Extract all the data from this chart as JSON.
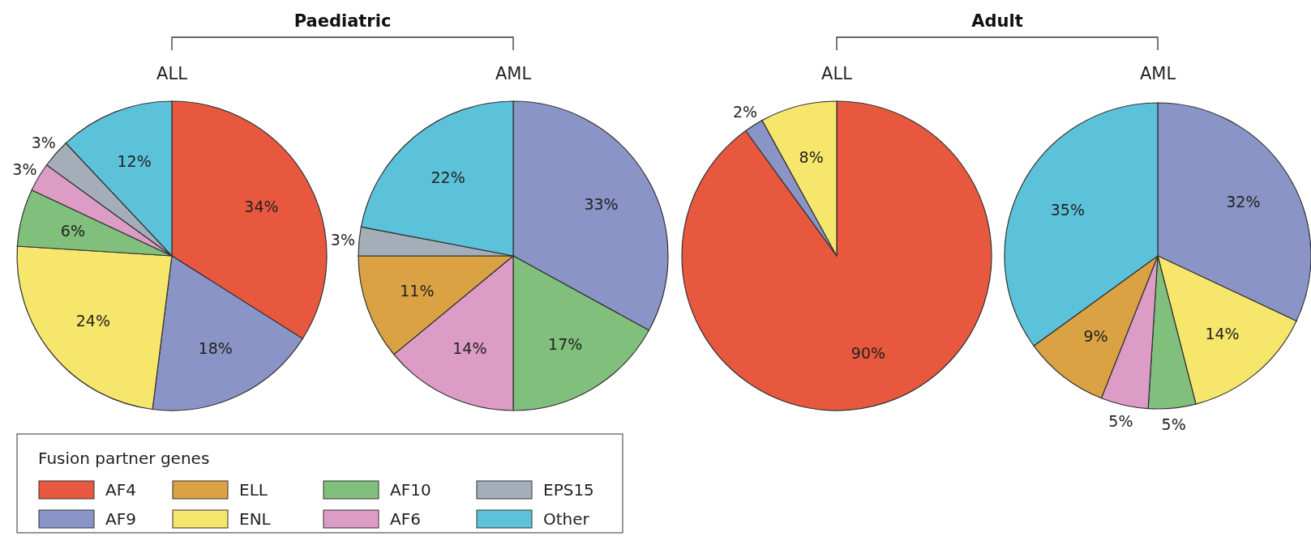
{
  "chart_data": [
    {
      "type": "pie",
      "title": "ALL",
      "annotations": [
        "Paediatric"
      ],
      "categories": [
        null,
        null,
        null,
        null,
        null,
        null,
        null
      ],
      "values": [
        34,
        18,
        24,
        6,
        3,
        3,
        12
      ],
      "value_labels": [
        "34%",
        "18%",
        "24%",
        "6%",
        "3%",
        "3%",
        "12%"
      ],
      "colors": [
        "#e8583f",
        "#8b94c6",
        "#f6e66c",
        "#80c07c",
        "#dc9cc6",
        "#a5aeb8",
        "#5cc2da"
      ]
    },
    {
      "type": "pie",
      "title": "AML",
      "categories": [
        null,
        null,
        null,
        null,
        null,
        null
      ],
      "values": [
        33,
        17,
        14,
        11,
        3,
        22
      ],
      "value_labels": [
        "33%",
        "17%",
        "14%",
        "11%",
        "3%",
        "22%"
      ],
      "colors": [
        "#8b94c6",
        "#80c07c",
        "#dc9cc6",
        "#daa243",
        "#a5aeb8",
        "#5cc2da"
      ]
    },
    {
      "type": "pie",
      "title": "ALL",
      "annotations": [
        "Adult"
      ],
      "categories": [
        null,
        null,
        null
      ],
      "values": [
        90,
        2,
        8
      ],
      "value_labels": [
        "90%",
        "2%",
        "8%"
      ],
      "colors": [
        "#e8583f",
        "#8b94c6",
        "#f6e66c"
      ]
    },
    {
      "type": "pie",
      "title": "AML",
      "categories": [
        null,
        null,
        null,
        null,
        null,
        null
      ],
      "values": [
        32,
        14,
        5,
        5,
        9,
        35
      ],
      "value_labels": [
        "32%",
        "14%",
        "5%",
        "5%",
        "9%",
        "35%"
      ],
      "colors": [
        "#8b94c6",
        "#f6e66c",
        "#80c07c",
        "#dc9cc6",
        "#daa243",
        "#5cc2da"
      ]
    },
    {
      "type": "other",
      "legend_title": "Fusion partner genes",
      "categories": [
        "AF4",
        "AF9",
        "ELL",
        "ENL",
        "AF10",
        "AF6",
        "EPS15",
        "Other"
      ],
      "colors": [
        "#e8583f",
        "#8b94c6",
        "#daa243",
        "#f6e66c",
        "#80c07c",
        "#dc9cc6",
        "#a5aeb8",
        "#5cc2da"
      ]
    }
  ]
}
